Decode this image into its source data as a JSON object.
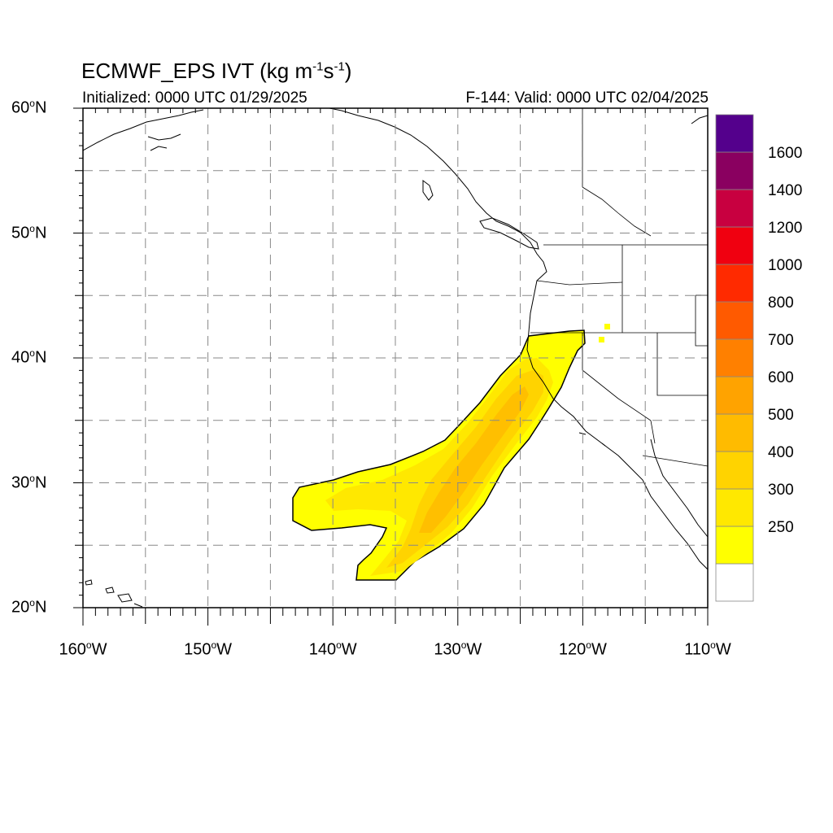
{
  "title": {
    "main": "ECMWF_EPS IVT (kg m",
    "sup1": "-1",
    "mid": "s",
    "sup2": "-1",
    "end": ")"
  },
  "init_text": "Initialized: 0000 UTC 01/29/2025",
  "valid_text": "F-144: Valid: 0000 UTC 02/04/2025",
  "map": {
    "lon_range": [
      -160,
      -110
    ],
    "lat_range": [
      20,
      60
    ],
    "gridlines": "dashed",
    "lat_labels": [
      {
        "deg": "60",
        "hemi": "N",
        "lat": 60
      },
      {
        "deg": "50",
        "hemi": "N",
        "lat": 50
      },
      {
        "deg": "40",
        "hemi": "N",
        "lat": 40
      },
      {
        "deg": "30",
        "hemi": "N",
        "lat": 30
      },
      {
        "deg": "20",
        "hemi": "N",
        "lat": 20
      }
    ],
    "lon_labels": [
      {
        "deg": "160",
        "hemi": "W",
        "lon": -160
      },
      {
        "deg": "150",
        "hemi": "W",
        "lon": -150
      },
      {
        "deg": "140",
        "hemi": "W",
        "lon": -140
      },
      {
        "deg": "130",
        "hemi": "W",
        "lon": -130
      },
      {
        "deg": "120",
        "hemi": "W",
        "lon": -120
      },
      {
        "deg": "110",
        "hemi": "W",
        "lon": -110
      }
    ]
  },
  "colorbar": {
    "placement": "right",
    "levels": [
      {
        "color": "#ffffff"
      },
      {
        "value": "250",
        "color": "#ffff00"
      },
      {
        "value": "300",
        "color": "#ffe800"
      },
      {
        "value": "400",
        "color": "#ffd300"
      },
      {
        "value": "500",
        "color": "#ffbb00"
      },
      {
        "value": "600",
        "color": "#ffa300"
      },
      {
        "value": "700",
        "color": "#ff8000"
      },
      {
        "value": "800",
        "color": "#ff5a00"
      },
      {
        "value": "1000",
        "color": "#ff2a00"
      },
      {
        "value": "1200",
        "color": "#f00010"
      },
      {
        "value": "1400",
        "color": "#c80040"
      },
      {
        "value": "1600",
        "color": "#8a0060",
        "top_color": "#54008c"
      }
    ]
  },
  "plume": {
    "description_colors": {
      "outer": "#ffff00",
      "mid": "#ffe800",
      "inner": "#ffd300",
      "core": "#ffbb00"
    }
  }
}
